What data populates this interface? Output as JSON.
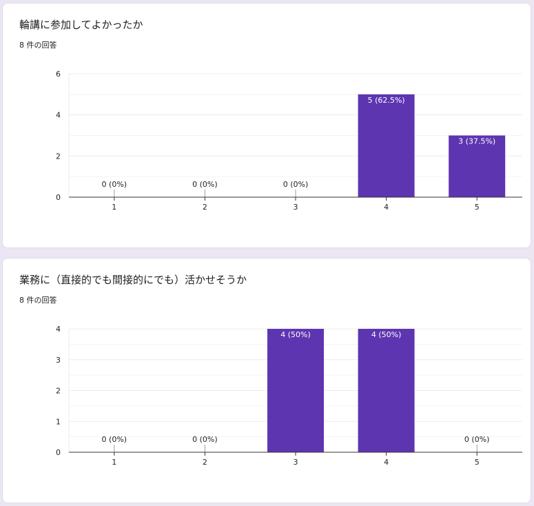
{
  "questions": [
    {
      "title": "輪講に参加してよかったか",
      "response_count": "8 件の回答"
    },
    {
      "title": "業務に（直接的でも間接的にでも）活かせそうか",
      "response_count": "8 件の回答"
    }
  ],
  "colors": {
    "bar": "#5e35b1",
    "grid": "#ececec",
    "axis": "#333333",
    "label_outside": "#202124",
    "label_inside": "#ffffff"
  },
  "chart_data": [
    {
      "type": "bar",
      "title": "",
      "xlabel": "",
      "ylabel": "",
      "categories": [
        "1",
        "2",
        "3",
        "4",
        "5"
      ],
      "values": [
        0,
        0,
        0,
        5,
        3
      ],
      "data_labels": [
        "0 (0%)",
        "0 (0%)",
        "0 (0%)",
        "5 (62.5%)",
        "3 (37.5%)"
      ],
      "ylim": [
        0,
        6
      ],
      "yticks": [
        "0",
        "2",
        "4",
        "6"
      ],
      "grid": true,
      "legend": "none"
    },
    {
      "type": "bar",
      "title": "",
      "xlabel": "",
      "ylabel": "",
      "categories": [
        "1",
        "2",
        "3",
        "4",
        "5"
      ],
      "values": [
        0,
        0,
        4,
        4,
        0
      ],
      "data_labels": [
        "0 (0%)",
        "0 (0%)",
        "4 (50%)",
        "4 (50%)",
        "0 (0%)"
      ],
      "ylim": [
        0,
        4
      ],
      "yticks": [
        "0",
        "1",
        "2",
        "3",
        "4"
      ],
      "grid": true,
      "legend": "none"
    }
  ]
}
